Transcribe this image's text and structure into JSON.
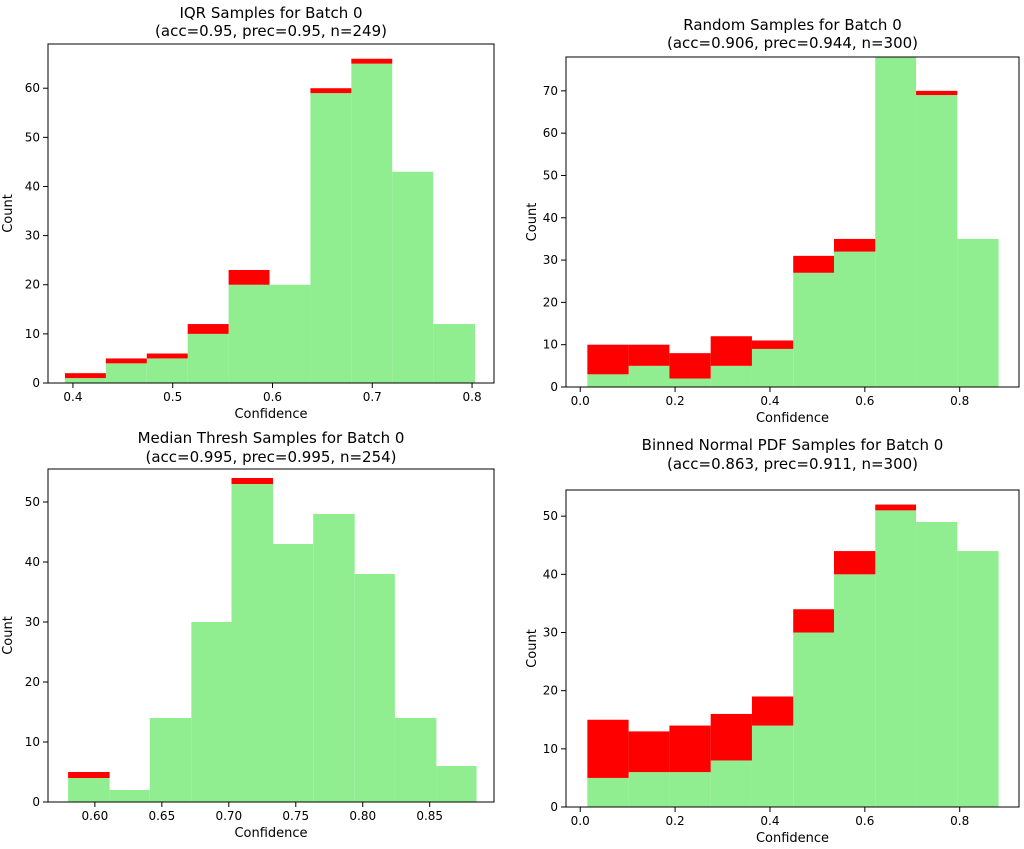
{
  "chart_data": [
    {
      "type": "bar",
      "stacked": true,
      "title": "IQR Samples for Batch 0",
      "subtitle": "(acc=0.95, prec=0.95, n=249)",
      "xlabel": "Confidence",
      "ylabel": "Count",
      "xlim": [
        0.375,
        0.822
      ],
      "ylim": [
        0,
        69
      ],
      "xticks": [
        0.4,
        0.5,
        0.6,
        0.7,
        0.8
      ],
      "yticks": [
        0,
        10,
        20,
        30,
        40,
        50,
        60
      ],
      "bin_edges": [
        0.392,
        0.433,
        0.474,
        0.515,
        0.556,
        0.597,
        0.638,
        0.679,
        0.72,
        0.761,
        0.803
      ],
      "series": [
        {
          "color": "#90ee90",
          "values": [
            1,
            4,
            5,
            10,
            20,
            20,
            59,
            65,
            43,
            12
          ]
        },
        {
          "color": "#ff0000",
          "values": [
            1,
            1,
            1,
            2,
            3,
            0,
            1,
            1,
            0,
            0
          ]
        }
      ]
    },
    {
      "type": "bar",
      "stacked": true,
      "title": "Random Samples for Batch 0",
      "subtitle": "(acc=0.906, prec=0.944, n=300)",
      "xlabel": "Confidence",
      "ylabel": "Count",
      "xlim": [
        -0.03,
        0.925
      ],
      "ylim": [
        0,
        78
      ],
      "xticks": [
        0.0,
        0.2,
        0.4,
        0.6,
        0.8
      ],
      "yticks": [
        0,
        10,
        20,
        30,
        40,
        50,
        60,
        70
      ],
      "bin_edges": [
        0.015,
        0.102,
        0.188,
        0.275,
        0.362,
        0.449,
        0.535,
        0.622,
        0.708,
        0.795,
        0.882
      ],
      "series": [
        {
          "color": "#90ee90",
          "values": [
            3,
            5,
            2,
            5,
            9,
            27,
            32,
            78,
            69,
            35
          ]
        },
        {
          "color": "#ff0000",
          "values": [
            7,
            5,
            6,
            7,
            2,
            4,
            3,
            0,
            1,
            0
          ]
        }
      ]
    },
    {
      "type": "bar",
      "stacked": true,
      "title": "Median Thresh Samples for Batch 0",
      "subtitle": "(acc=0.995, prec=0.995, n=254)",
      "xlabel": "Confidence",
      "ylabel": "Count",
      "xlim": [
        0.565,
        0.898
      ],
      "ylim": [
        0,
        55.5
      ],
      "xticks": [
        0.6,
        0.65,
        0.7,
        0.75,
        0.8,
        0.85
      ],
      "yticks": [
        0,
        10,
        20,
        30,
        40,
        50
      ],
      "tick_format": 2,
      "bin_edges": [
        0.58,
        0.611,
        0.641,
        0.672,
        0.702,
        0.733,
        0.763,
        0.794,
        0.824,
        0.855,
        0.885
      ],
      "series": [
        {
          "color": "#90ee90",
          "values": [
            4,
            2,
            14,
            30,
            53,
            43,
            48,
            38,
            14,
            6
          ]
        },
        {
          "color": "#ff0000",
          "values": [
            1,
            0,
            0,
            0,
            1,
            0,
            0,
            0,
            0,
            0
          ]
        }
      ]
    },
    {
      "type": "bar",
      "stacked": true,
      "title": "Binned Normal PDF Samples for Batch 0",
      "subtitle": "(acc=0.863, prec=0.911, n=300)",
      "xlabel": "Confidence",
      "ylabel": "Count",
      "xlim": [
        -0.03,
        0.925
      ],
      "ylim": [
        0,
        54.5
      ],
      "xticks": [
        0.0,
        0.2,
        0.4,
        0.6,
        0.8
      ],
      "yticks": [
        0,
        10,
        20,
        30,
        40,
        50
      ],
      "bin_edges": [
        0.015,
        0.102,
        0.188,
        0.275,
        0.362,
        0.449,
        0.535,
        0.622,
        0.708,
        0.795,
        0.882
      ],
      "series": [
        {
          "color": "#90ee90",
          "values": [
            5,
            6,
            6,
            8,
            14,
            30,
            40,
            51,
            49,
            44
          ]
        },
        {
          "color": "#ff0000",
          "values": [
            10,
            7,
            8,
            8,
            5,
            4,
            4,
            1,
            0,
            0
          ]
        }
      ]
    }
  ]
}
